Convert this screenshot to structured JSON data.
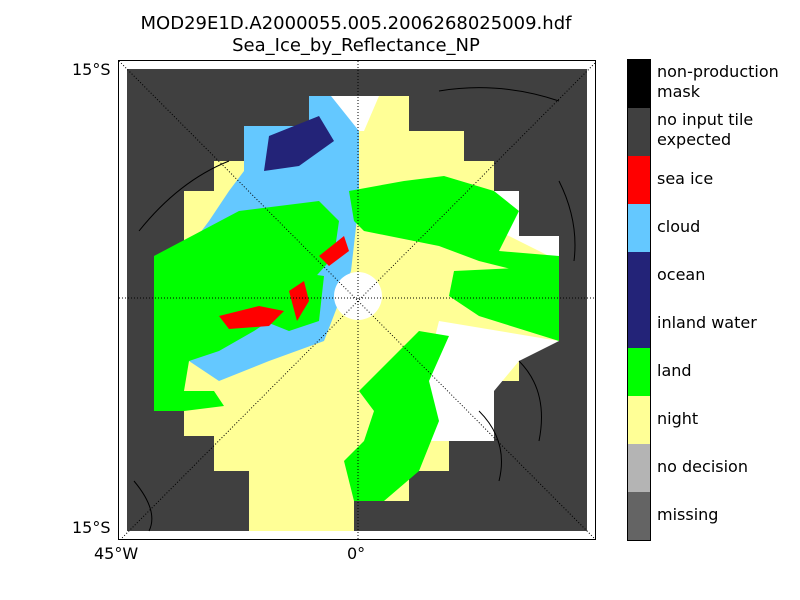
{
  "title": {
    "line1": "MOD29E1D.A2000055.005.2006268025009.hdf",
    "line2": "Sea_Ice_by_Reflectance_NP"
  },
  "axis_ticks": {
    "lat_top": "15°S",
    "lat_bottom": "15°S",
    "lon_left": "45°W",
    "lon_center": "0°"
  },
  "legend": [
    {
      "label": "non-production mask",
      "color": "#000000"
    },
    {
      "label": "no input tile expected",
      "color": "#404040"
    },
    {
      "label": "sea ice",
      "color": "#ff0000"
    },
    {
      "label": "cloud",
      "color": "#64c8ff"
    },
    {
      "label": "ocean",
      "color": "#232378"
    },
    {
      "label": "inland water",
      "color": "#232378"
    },
    {
      "label": "land",
      "color": "#00ff00"
    },
    {
      "label": "night",
      "color": "#ffff96"
    },
    {
      "label": "no decision",
      "color": "#b4b4b4"
    },
    {
      "label": "missing",
      "color": "#646464"
    }
  ],
  "map_colors": {
    "no_input": "#404040",
    "night": "#ffff96",
    "land": "#00ff00",
    "cloud": "#64c8ff",
    "sea_ice": "#ff0000",
    "ocean": "#232378",
    "nodata": "#ffffff"
  }
}
